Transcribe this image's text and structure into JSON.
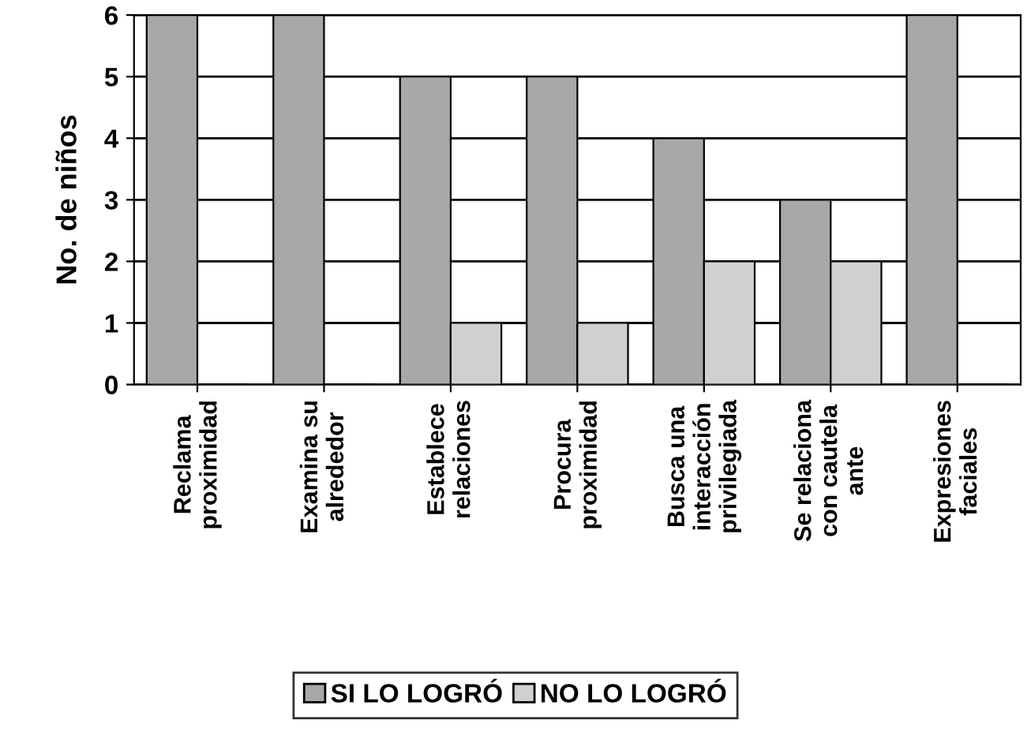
{
  "chart_data": {
    "type": "bar",
    "ylabel": "No. de niños",
    "categories": [
      "Reclama\nproximidad",
      "Examina su\nalrededor",
      "Establece\nrelaciones",
      "Procura\nproximidad",
      "Busca una\ninteracción\nprivilegiada",
      "Se relaciona\ncon cautela\nante",
      "Expresiones\nfaciales"
    ],
    "series": [
      {
        "name": "SI LO LOGRÓ",
        "color": "#a8a8a8",
        "values": [
          6,
          6,
          5,
          5,
          4,
          3,
          6
        ]
      },
      {
        "name": "NO LO LOGRÓ",
        "color": "#d0d0d0",
        "values": [
          0,
          0,
          1,
          1,
          2,
          2,
          0
        ]
      }
    ],
    "ylim": [
      0,
      6
    ],
    "yticks": [
      0,
      1,
      2,
      3,
      4,
      5,
      6
    ],
    "grid": "y",
    "legend": "bottom"
  }
}
